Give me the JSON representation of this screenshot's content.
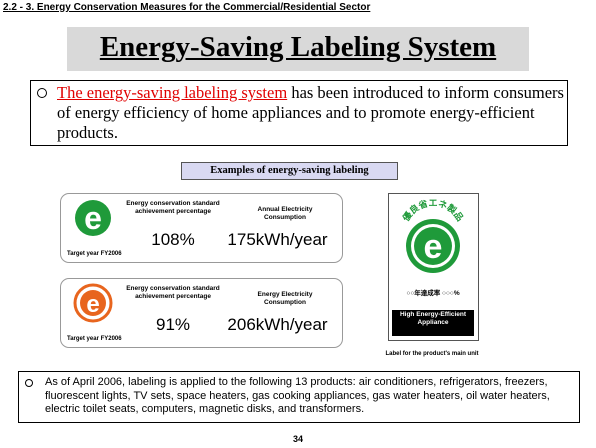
{
  "section_header": "2.2 - 3. Energy Conservation Measures for the Commercial/Residential Sector",
  "title": "Energy-Saving Labeling System",
  "intro": {
    "highlight": "The energy-saving labeling system",
    "rest": " has been introduced to inform consumers of energy efficiency of home appliances and to promote energy-efficient products."
  },
  "examples_heading": "Examples of energy-saving  labeling",
  "labels": [
    {
      "logo_color": "#1f9a3a",
      "logo_letter": "e",
      "target_year": "Target year FY2006",
      "achievement_label": "Energy conservation standard achievement percentage",
      "achievement_value": "108%",
      "consumption_label": "Annual Electricity Consumption",
      "consumption_value": "175kWh/year"
    },
    {
      "logo_color": "#e8651e",
      "logo_letter": "e",
      "target_year": "Target year FY2006",
      "achievement_label": "Energy conservation standard achievement percentage",
      "achievement_value": "91%",
      "consumption_label": "Energy Electricity Consumption",
      "consumption_value": "206kWh/year"
    }
  ],
  "mark": {
    "color": "#1f9a3a",
    "arc_text": "優良省エネ製品",
    "bottom_line": "○○年達成率 ○○○%",
    "band_text": "High Energy-Efficient Appliance",
    "caption": "Label for the product's main unit"
  },
  "note": "As of April 2006, labeling is applied to the following 13 products: air conditioners, refrigerators, freezers, fluorescent lights, TV sets, space heaters, gas cooking appliances, gas water heaters, oil water heaters, electric toilet seats, computers, magnetic disks, and transformers.",
  "page_number": "34"
}
